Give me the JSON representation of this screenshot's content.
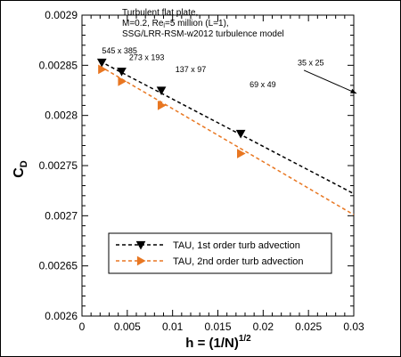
{
  "chart_data": {
    "type": "line",
    "title_lines": [
      "Turbulent flat plate,",
      "M=0.2, Re_l=5 million (L=1),",
      "SSG/LRR-RSM-w2012 turbulence model"
    ],
    "xlabel": "h = (1/N)^1/2",
    "ylabel": "C_D",
    "xlim": [
      0,
      0.03
    ],
    "ylim": [
      0.0026,
      0.0029
    ],
    "x_ticks": [
      0,
      0.005,
      0.01,
      0.015,
      0.02,
      0.025,
      0.03
    ],
    "x_tick_labels": [
      "0",
      "0.005",
      "0.01",
      "0.015",
      "0.02",
      "0.025",
      "0.03"
    ],
    "y_ticks": [
      0.0026,
      0.00265,
      0.0027,
      0.00275,
      0.0028,
      0.00285,
      0.0029
    ],
    "y_tick_labels": [
      "0.0026",
      "0.00265",
      "0.0027",
      "0.00275",
      "0.0028",
      "0.00285",
      "0.0029"
    ],
    "grid": false,
    "legend_position": "bottom-center",
    "series": [
      {
        "name": "TAU, 1st order turb advection",
        "color": "#000000",
        "marker": "triangle-down",
        "points": [
          [
            0.00219,
            0.002853
          ],
          [
            0.00438,
            0.002844
          ],
          [
            0.00876,
            0.002825
          ],
          [
            0.01752,
            0.002782
          ]
        ],
        "fit_line": [
          [
            0.002,
            0.002854
          ],
          [
            0.03,
            0.002722
          ]
        ]
      },
      {
        "name": "TAU, 2nd order turb advection",
        "color": "#e87722",
        "marker": "triangle-right",
        "points": [
          [
            0.00219,
            0.002846
          ],
          [
            0.00438,
            0.002834
          ],
          [
            0.00876,
            0.00281
          ],
          [
            0.01752,
            0.002762
          ]
        ],
        "fit_line": [
          [
            0.002,
            0.002849
          ],
          [
            0.03,
            0.002701
          ]
        ]
      }
    ],
    "annotations": [
      {
        "text": "545 x 385",
        "x": 0.0022,
        "y": 0.002862
      },
      {
        "text": "273 x 193",
        "x": 0.0052,
        "y": 0.002855
      },
      {
        "text": "137 x 97",
        "x": 0.0103,
        "y": 0.002843
      },
      {
        "text": "69 x 49",
        "x": 0.0185,
        "y": 0.002828
      },
      {
        "text": "35 x 25",
        "x": 0.0238,
        "y": 0.00285
      }
    ],
    "arrow": {
      "from": [
        0.0245,
        0.002845
      ],
      "to": [
        0.0303,
        0.002822
      ]
    }
  }
}
